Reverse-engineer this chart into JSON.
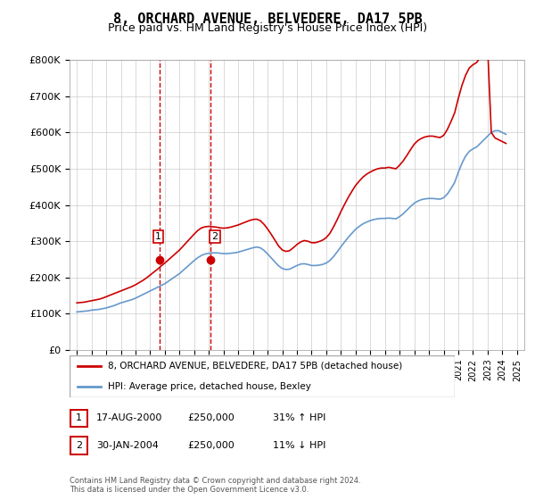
{
  "title": "8, ORCHARD AVENUE, BELVEDERE, DA17 5PB",
  "subtitle": "Price paid vs. HM Land Registry's House Price Index (HPI)",
  "legend_line1": "8, ORCHARD AVENUE, BELVEDERE, DA17 5PB (detached house)",
  "legend_line2": "HPI: Average price, detached house, Bexley",
  "footer": "Contains HM Land Registry data © Crown copyright and database right 2024.\nThis data is licensed under the Open Government Licence v3.0.",
  "sale1_label": "1",
  "sale1_date": "17-AUG-2000",
  "sale1_price": "£250,000",
  "sale1_hpi": "31% ↑ HPI",
  "sale1_year": 2000.625,
  "sale1_value": 250000,
  "sale2_label": "2",
  "sale2_date": "30-JAN-2004",
  "sale2_price": "£250,000",
  "sale2_hpi": "11% ↓ HPI",
  "sale2_year": 2004.08,
  "sale2_value": 250000,
  "red_color": "#cc0000",
  "blue_color": "#6699cc",
  "dashed_color": "#cc0000",
  "marker_color": "#cc0000",
  "ylim": [
    0,
    800000
  ],
  "xlim": [
    1994.5,
    2025.5
  ],
  "yticks": [
    0,
    100000,
    200000,
    300000,
    400000,
    500000,
    600000,
    700000,
    800000
  ],
  "ytick_labels": [
    "£0",
    "£100K",
    "£200K",
    "£300K",
    "£400K",
    "£500K",
    "£600K",
    "£700K",
    "£800K"
  ],
  "xticks": [
    1995,
    1996,
    1997,
    1998,
    1999,
    2000,
    2001,
    2002,
    2003,
    2004,
    2005,
    2006,
    2007,
    2008,
    2009,
    2010,
    2011,
    2012,
    2013,
    2014,
    2015,
    2016,
    2017,
    2018,
    2019,
    2020,
    2021,
    2022,
    2023,
    2024,
    2025
  ],
  "hpi_x": [
    1995,
    1995.25,
    1995.5,
    1995.75,
    1996,
    1996.25,
    1996.5,
    1996.75,
    1997,
    1997.25,
    1997.5,
    1997.75,
    1998,
    1998.25,
    1998.5,
    1998.75,
    1999,
    1999.25,
    1999.5,
    1999.75,
    2000,
    2000.25,
    2000.5,
    2000.75,
    2001,
    2001.25,
    2001.5,
    2001.75,
    2002,
    2002.25,
    2002.5,
    2002.75,
    2003,
    2003.25,
    2003.5,
    2003.75,
    2004,
    2004.25,
    2004.5,
    2004.75,
    2005,
    2005.25,
    2005.5,
    2005.75,
    2006,
    2006.25,
    2006.5,
    2006.75,
    2007,
    2007.25,
    2007.5,
    2007.75,
    2008,
    2008.25,
    2008.5,
    2008.75,
    2009,
    2009.25,
    2009.5,
    2009.75,
    2010,
    2010.25,
    2010.5,
    2010.75,
    2011,
    2011.25,
    2011.5,
    2011.75,
    2012,
    2012.25,
    2012.5,
    2012.75,
    2013,
    2013.25,
    2013.5,
    2013.75,
    2014,
    2014.25,
    2014.5,
    2014.75,
    2015,
    2015.25,
    2015.5,
    2015.75,
    2016,
    2016.25,
    2016.5,
    2016.75,
    2017,
    2017.25,
    2017.5,
    2017.75,
    2018,
    2018.25,
    2018.5,
    2018.75,
    2019,
    2019.25,
    2019.5,
    2019.75,
    2020,
    2020.25,
    2020.5,
    2020.75,
    2021,
    2021.25,
    2021.5,
    2021.75,
    2022,
    2022.25,
    2022.5,
    2022.75,
    2023,
    2023.25,
    2023.5,
    2023.75,
    2024,
    2024.25
  ],
  "hpi_y": [
    105000,
    106000,
    107000,
    108000,
    110000,
    111000,
    112000,
    114000,
    116000,
    119000,
    122000,
    126000,
    130000,
    133000,
    136000,
    139000,
    143000,
    148000,
    153000,
    158000,
    163000,
    168000,
    173000,
    178000,
    183000,
    190000,
    197000,
    204000,
    211000,
    220000,
    229000,
    238000,
    247000,
    255000,
    261000,
    265000,
    267000,
    268000,
    268000,
    267000,
    266000,
    266000,
    267000,
    268000,
    270000,
    273000,
    276000,
    279000,
    282000,
    284000,
    282000,
    275000,
    265000,
    254000,
    243000,
    232000,
    225000,
    222000,
    223000,
    228000,
    233000,
    237000,
    238000,
    236000,
    233000,
    233000,
    234000,
    236000,
    240000,
    247000,
    258000,
    271000,
    285000,
    298000,
    311000,
    322000,
    333000,
    341000,
    348000,
    353000,
    357000,
    360000,
    362000,
    363000,
    363000,
    364000,
    363000,
    362000,
    368000,
    376000,
    386000,
    396000,
    405000,
    411000,
    415000,
    417000,
    418000,
    418000,
    417000,
    416000,
    420000,
    430000,
    445000,
    462000,
    490000,
    515000,
    535000,
    548000,
    555000,
    560000,
    570000,
    580000,
    590000,
    600000,
    605000,
    605000,
    600000,
    595000
  ],
  "red_x": [
    1995,
    1995.25,
    1995.5,
    1995.75,
    1996,
    1996.25,
    1996.5,
    1996.75,
    1997,
    1997.25,
    1997.5,
    1997.75,
    1998,
    1998.25,
    1998.5,
    1998.75,
    1999,
    1999.25,
    1999.5,
    1999.75,
    2000,
    2000.25,
    2000.5,
    2000.75,
    2001,
    2001.25,
    2001.5,
    2001.75,
    2002,
    2002.25,
    2002.5,
    2002.75,
    2003,
    2003.25,
    2003.5,
    2003.75,
    2004,
    2004.25,
    2004.5,
    2004.75,
    2005,
    2005.25,
    2005.5,
    2005.75,
    2006,
    2006.25,
    2006.5,
    2006.75,
    2007,
    2007.25,
    2007.5,
    2007.75,
    2008,
    2008.25,
    2008.5,
    2008.75,
    2009,
    2009.25,
    2009.5,
    2009.75,
    2010,
    2010.25,
    2010.5,
    2010.75,
    2011,
    2011.25,
    2011.5,
    2011.75,
    2012,
    2012.25,
    2012.5,
    2012.75,
    2013,
    2013.25,
    2013.5,
    2013.75,
    2014,
    2014.25,
    2014.5,
    2014.75,
    2015,
    2015.25,
    2015.5,
    2015.75,
    2016,
    2016.25,
    2016.5,
    2016.75,
    2017,
    2017.25,
    2017.5,
    2017.75,
    2018,
    2018.25,
    2018.5,
    2018.75,
    2019,
    2019.25,
    2019.5,
    2019.75,
    2020,
    2020.25,
    2020.5,
    2020.75,
    2021,
    2021.25,
    2021.5,
    2021.75,
    2022,
    2022.25,
    2022.5,
    2022.75,
    2023,
    2023.25,
    2023.5,
    2023.75,
    2024,
    2024.25
  ],
  "red_y": [
    130000,
    131000,
    132000,
    134000,
    136000,
    138000,
    140000,
    143000,
    147000,
    151000,
    155000,
    159000,
    163000,
    167000,
    171000,
    175000,
    180000,
    186000,
    192000,
    199000,
    207000,
    215000,
    223000,
    232000,
    240000,
    249000,
    258000,
    267000,
    276000,
    287000,
    298000,
    309000,
    320000,
    330000,
    337000,
    340000,
    341000,
    340000,
    339000,
    337000,
    336000,
    337000,
    339000,
    342000,
    345000,
    349000,
    353000,
    357000,
    360000,
    361000,
    357000,
    347000,
    334000,
    319000,
    303000,
    287000,
    276000,
    272000,
    274000,
    282000,
    291000,
    298000,
    302000,
    300000,
    296000,
    296000,
    299000,
    303000,
    310000,
    322000,
    340000,
    360000,
    382000,
    402000,
    421000,
    438000,
    454000,
    466000,
    477000,
    485000,
    491000,
    496000,
    500000,
    502000,
    502000,
    504000,
    502000,
    500000,
    510000,
    522000,
    537000,
    553000,
    568000,
    578000,
    584000,
    588000,
    590000,
    590000,
    588000,
    586000,
    592000,
    608000,
    630000,
    654000,
    694000,
    730000,
    758000,
    778000,
    787000,
    793000,
    808000,
    821000,
    835000,
    600000,
    585000,
    580000,
    575000,
    570000
  ]
}
